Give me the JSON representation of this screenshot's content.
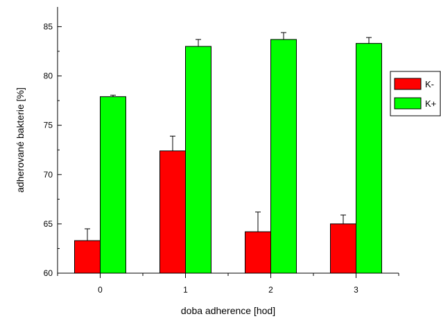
{
  "chart_data": {
    "type": "bar",
    "categories": [
      "0",
      "1",
      "2",
      "3"
    ],
    "series": [
      {
        "name": "K-",
        "color": "#ff0000",
        "values": [
          63.3,
          72.4,
          64.2,
          65.0
        ],
        "errors": [
          1.2,
          1.5,
          2.0,
          0.9
        ]
      },
      {
        "name": "K+",
        "color": "#00ff00",
        "values": [
          77.9,
          83.0,
          83.7,
          83.3
        ],
        "errors": [
          0.15,
          0.7,
          0.7,
          0.6
        ]
      }
    ],
    "title": "",
    "xlabel": "doba adherence [hod]",
    "ylabel": "adherované bakterie [%]",
    "ylim": [
      60,
      87
    ],
    "yticks": [
      60,
      65,
      70,
      75,
      80,
      85
    ],
    "grid": false,
    "legend_position": "right"
  }
}
